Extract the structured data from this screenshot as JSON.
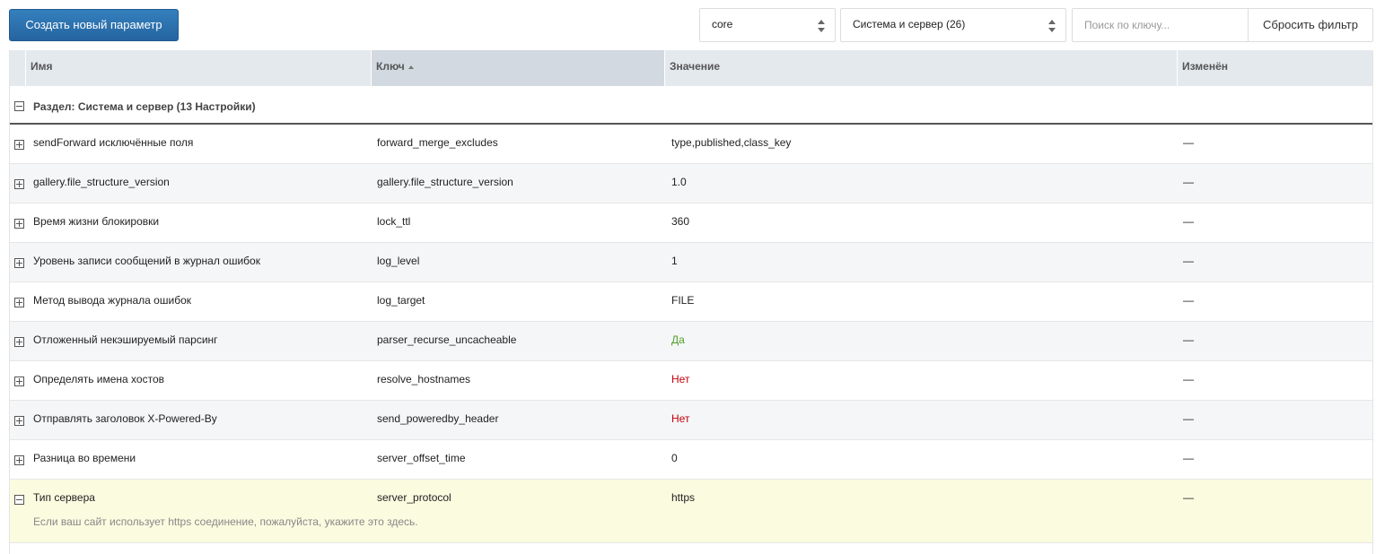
{
  "toolbar": {
    "create_label": "Создать новый параметр",
    "namespace_value": "core",
    "area_value": "Система и сервер (26)",
    "search_placeholder": "Поиск по ключу...",
    "reset_label": "Сбросить фильтр"
  },
  "columns": {
    "name": "Имя",
    "key": "Ключ",
    "value": "Значение",
    "changed": "Изменён"
  },
  "group": {
    "title": "Раздел: Система и сервер (13 Настройки)"
  },
  "rows": [
    {
      "name": "sendForward исключённые поля",
      "key": "forward_merge_excludes",
      "value": "type,published,class_key",
      "changed": "—"
    },
    {
      "name": "gallery.file_structure_version",
      "key": "gallery.file_structure_version",
      "value": "1.0",
      "changed": "—"
    },
    {
      "name": "Время жизни блокировки",
      "key": "lock_ttl",
      "value": "360",
      "changed": "—"
    },
    {
      "name": "Уровень записи сообщений в журнал ошибок",
      "key": "log_level",
      "value": "1",
      "changed": "—"
    },
    {
      "name": "Метод вывода журнала ошибок",
      "key": "log_target",
      "value": "FILE",
      "changed": "—"
    },
    {
      "name": "Отложенный некэшируемый парсинг",
      "key": "parser_recurse_uncacheable",
      "value": "Да",
      "changed": "—"
    },
    {
      "name": "Определять имена хостов",
      "key": "resolve_hostnames",
      "value": "Нет",
      "changed": "—"
    },
    {
      "name": "Отправлять заголовок X-Powered-By",
      "key": "send_poweredby_header",
      "value": "Нет",
      "changed": "—"
    },
    {
      "name": "Разница во времени",
      "key": "server_offset_time",
      "value": "0",
      "changed": "—"
    },
    {
      "name": "Тип сервера",
      "key": "server_protocol",
      "value": "https",
      "changed": "—",
      "description": "Если ваш сайт использует https соединение, пожалуйста, укажите это здесь."
    }
  ],
  "colors": {
    "accent": "#2b6fa8",
    "yes": "#52a02c",
    "no": "#c0000a",
    "expanded_row": "#fbfbe0"
  }
}
